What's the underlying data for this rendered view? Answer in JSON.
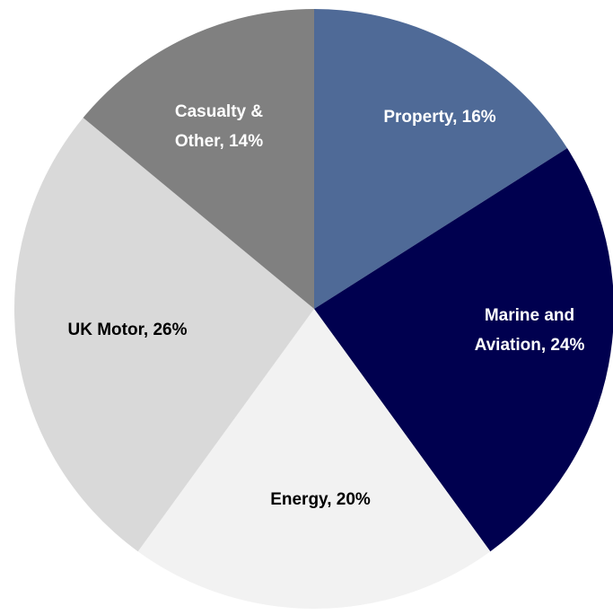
{
  "chart_data": {
    "type": "pie",
    "values": [
      16,
      24,
      20,
      26,
      14
    ],
    "value_labels": [
      "Property, 16%",
      "Marine and Aviation, 24%",
      "Energy, 20%",
      "UK Motor, 26%",
      "Casualty & Other, 14%"
    ],
    "colors": [
      "#4f6a97",
      "#00004f",
      "#f2f2f2",
      "#d9d9d9",
      "#808080"
    ],
    "label_colors": [
      "#ffffff",
      "#ffffff",
      "#000000",
      "#000000",
      "#ffffff"
    ]
  }
}
